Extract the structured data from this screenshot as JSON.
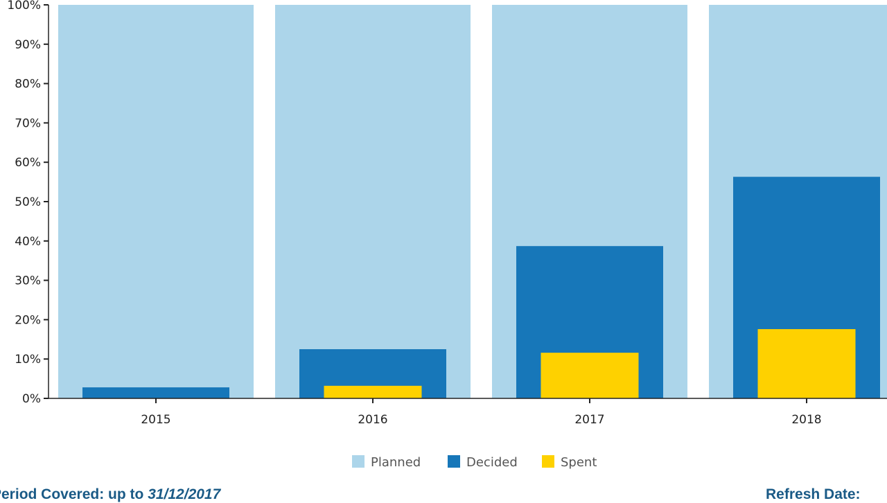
{
  "chart_data": {
    "type": "bar",
    "categories": [
      "2015",
      "2016",
      "2017",
      "2018"
    ],
    "series": [
      {
        "name": "Planned",
        "values": [
          100,
          100,
          100,
          100
        ],
        "color": "#acd5ea"
      },
      {
        "name": "Decided",
        "values": [
          2.8,
          12.5,
          38.7,
          56.3
        ],
        "color": "#1777b9"
      },
      {
        "name": "Spent",
        "values": [
          0,
          3.2,
          11.6,
          17.6
        ],
        "color": "#fed100"
      }
    ],
    "ylim": [
      0,
      100
    ],
    "yticks": [
      "0%",
      "10%",
      "20%",
      "30%",
      "40%",
      "50%",
      "60%",
      "70%",
      "80%",
      "90%",
      "100%"
    ],
    "legend": "bottom",
    "grid": false
  },
  "footer": {
    "period_label": "Period Covered: up to ",
    "period_date": "31/12/2017",
    "refresh_label": "Refresh Date: "
  }
}
